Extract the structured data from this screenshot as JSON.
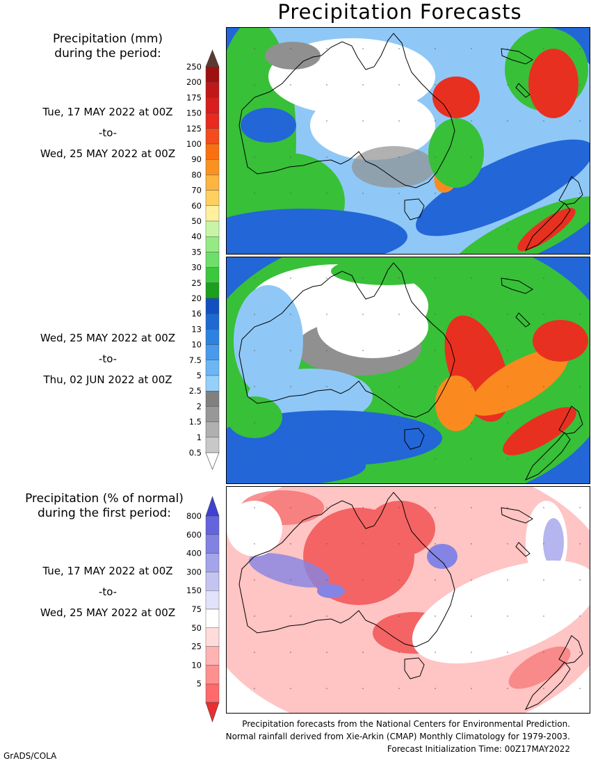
{
  "title": "Precipitation Forecasts",
  "mm_header": [
    "Precipitation (mm)",
    "during the period:"
  ],
  "period1": {
    "start": "Tue, 17 MAY 2022 at 00Z",
    "sep": "-to-",
    "end": "Wed, 25 MAY 2022 at 00Z"
  },
  "period2": {
    "start": "Wed, 25 MAY 2022 at 00Z",
    "sep": "-to-",
    "end": "Thu, 02 JUN 2022 at 00Z"
  },
  "pct_header": [
    "Precipitation (% of normal)",
    "during the first period:"
  ],
  "period3": {
    "start": "Tue, 17 MAY 2022 at 00Z",
    "sep": "-to-",
    "end": "Wed, 25 MAY 2022 at 00Z"
  },
  "mm_scale": {
    "labels": [
      "250",
      "200",
      "175",
      "150",
      "125",
      "100",
      "90",
      "80",
      "70",
      "60",
      "50",
      "40",
      "35",
      "30",
      "25",
      "20",
      "16",
      "13",
      "10",
      "7.5",
      "5",
      "2.5",
      "2",
      "1.5",
      "1",
      "0.5"
    ],
    "colors": [
      "#a01010",
      "#c01818",
      "#d81e1e",
      "#e82a20",
      "#f44c1c",
      "#fa7010",
      "#fb9220",
      "#fdb440",
      "#fed060",
      "#fff0a0",
      "#c6f5a8",
      "#96ea84",
      "#6ce06a",
      "#3cc83c",
      "#1c9e1e",
      "#1250c0",
      "#1e6ad2",
      "#2c82e0",
      "#4a9aec",
      "#6cb6f4",
      "#94d0fa",
      "#808080",
      "#989898",
      "#b0b0b0",
      "#c8c8c8"
    ],
    "top_arrow_color": "#5a3a30",
    "bottom_arrow_color": "#ffffff"
  },
  "pct_scale": {
    "labels": [
      "800",
      "600",
      "400",
      "300",
      "150",
      "75",
      "50",
      "25",
      "10",
      "5"
    ],
    "colors": [
      "#6464dc",
      "#8282e2",
      "#a4a4ea",
      "#c4c4f2",
      "#e2e2fa",
      "#ffffff",
      "#ffdcdc",
      "#ffb4b4",
      "#ff9090",
      "#ff6a6a"
    ],
    "top_arrow_color": "#4040d0",
    "bottom_arrow_color": "#e83030"
  },
  "footer": [
    "Precipitation forecasts from the National Centers for Environmental Prediction.",
    "Normal rainfall derived from Xie-Arkin (CMAP) Monthly Climatology for 1979-2003.",
    "Forecast Initialization Time: 00Z17MAY2022"
  ],
  "credit": "GrADS/COLA",
  "map_colors": {
    "ocean_blue": "#2266d8",
    "light_blue": "#8fc8f6",
    "green": "#38c038",
    "dark_green": "#1a9a1e",
    "grey": "#909090",
    "white": "#ffffff",
    "red": "#e83020",
    "orange": "#fa8a20",
    "pct_red": "#f46464",
    "pct_pink": "#ffc4c4",
    "pct_blue": "#8484e4"
  }
}
